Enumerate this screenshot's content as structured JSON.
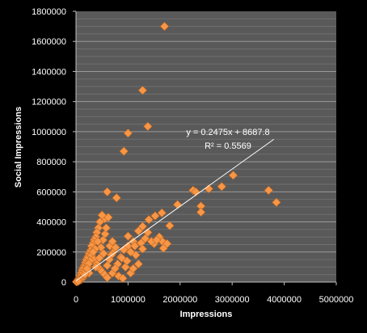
{
  "chart_data": {
    "type": "scatter",
    "title": "",
    "xlabel": "Impressions",
    "ylabel": "Social Impressions",
    "xlim": [
      0,
      5000000
    ],
    "ylim": [
      0,
      1800000
    ],
    "x_ticks": [
      0,
      1000000,
      2000000,
      3000000,
      4000000,
      5000000
    ],
    "y_ticks": [
      0,
      200000,
      400000,
      600000,
      800000,
      1000000,
      1200000,
      1400000,
      1600000,
      1800000
    ],
    "x_tick_labels": [
      "0",
      "1000000",
      "2000000",
      "3000000",
      "4000000",
      "5000000"
    ],
    "y_tick_labels": [
      "0",
      "200000",
      "400000",
      "600000",
      "800000",
      "1000000",
      "1200000",
      "1400000",
      "1600000",
      "1800000"
    ],
    "grid": true,
    "legend": "none",
    "colors": {
      "background": "#000000",
      "plot_area": "#595959",
      "grid": "#8a8a8a",
      "marker": "#F79646",
      "trendline": "#ffffff",
      "text": "#ffffff"
    },
    "trendline": {
      "equation": "y = 0.2475x + 8687.8",
      "r_squared": "R² = 0.5569",
      "slope": 0.2475,
      "intercept": 8687.8,
      "x_range": [
        0,
        3800000
      ]
    },
    "series": [
      {
        "marker": "diamond",
        "points": [
          [
            1700000,
            1700000
          ],
          [
            1280000,
            1275000
          ],
          [
            1380000,
            1035000
          ],
          [
            1000000,
            990000
          ],
          [
            920000,
            870000
          ],
          [
            600000,
            600000
          ],
          [
            780000,
            560000
          ],
          [
            2250000,
            610000
          ],
          [
            2300000,
            600000
          ],
          [
            2550000,
            620000
          ],
          [
            2800000,
            635000
          ],
          [
            3020000,
            710000
          ],
          [
            3700000,
            610000
          ],
          [
            3850000,
            530000
          ],
          [
            1950000,
            515000
          ],
          [
            2400000,
            505000
          ],
          [
            2400000,
            465000
          ],
          [
            1650000,
            460000
          ],
          [
            1520000,
            440000
          ],
          [
            1400000,
            415000
          ],
          [
            1280000,
            370000
          ],
          [
            1800000,
            375000
          ],
          [
            1200000,
            340000
          ],
          [
            1000000,
            305000
          ],
          [
            1330000,
            290000
          ],
          [
            1600000,
            300000
          ],
          [
            1660000,
            270000
          ],
          [
            1750000,
            255000
          ],
          [
            1500000,
            255000
          ],
          [
            1680000,
            225000
          ],
          [
            1250000,
            260000
          ],
          [
            1280000,
            220000
          ],
          [
            1100000,
            270000
          ],
          [
            1150000,
            180000
          ],
          [
            1000000,
            240000
          ],
          [
            920000,
            215000
          ],
          [
            860000,
            165000
          ],
          [
            800000,
            120000
          ],
          [
            720000,
            200000
          ],
          [
            680000,
            180000
          ],
          [
            640000,
            150000
          ],
          [
            600000,
            110000
          ],
          [
            550000,
            420000
          ],
          [
            620000,
            430000
          ],
          [
            500000,
            445000
          ],
          [
            460000,
            400000
          ],
          [
            430000,
            360000
          ],
          [
            400000,
            330000
          ],
          [
            380000,
            300000
          ],
          [
            350000,
            280000
          ],
          [
            330000,
            260000
          ],
          [
            300000,
            240000
          ],
          [
            280000,
            210000
          ],
          [
            250000,
            190000
          ],
          [
            230000,
            170000
          ],
          [
            200000,
            150000
          ],
          [
            180000,
            130000
          ],
          [
            160000,
            110000
          ],
          [
            140000,
            95000
          ],
          [
            120000,
            80000
          ],
          [
            100000,
            60000
          ],
          [
            90000,
            45000
          ],
          [
            70000,
            30000
          ],
          [
            50000,
            20000
          ],
          [
            30000,
            10000
          ],
          [
            20000,
            5000
          ],
          [
            10000,
            2000
          ],
          [
            300000,
            180000
          ],
          [
            350000,
            150000
          ],
          [
            400000,
            120000
          ],
          [
            450000,
            90000
          ],
          [
            500000,
            70000
          ],
          [
            550000,
            50000
          ],
          [
            600000,
            30000
          ],
          [
            700000,
            60000
          ],
          [
            750000,
            90000
          ],
          [
            820000,
            40000
          ],
          [
            900000,
            25000
          ],
          [
            950000,
            100000
          ],
          [
            1050000,
            60000
          ],
          [
            1100000,
            90000
          ],
          [
            1200000,
            120000
          ],
          [
            250000,
            60000
          ],
          [
            220000,
            100000
          ],
          [
            180000,
            70000
          ],
          [
            150000,
            40000
          ],
          [
            130000,
            30000
          ],
          [
            110000,
            20000
          ],
          [
            90000,
            15000
          ],
          [
            60000,
            10000
          ],
          [
            40000,
            5000
          ],
          [
            480000,
            230000
          ],
          [
            520000,
            280000
          ],
          [
            560000,
            320000
          ],
          [
            580000,
            360000
          ],
          [
            420000,
            270000
          ],
          [
            370000,
            220000
          ],
          [
            330000,
            200000
          ],
          [
            270000,
            140000
          ],
          [
            240000,
            120000
          ],
          [
            210000,
            90000
          ],
          [
            170000,
            50000
          ],
          [
            380000,
            100000
          ],
          [
            450000,
            160000
          ],
          [
            530000,
            190000
          ],
          [
            650000,
            240000
          ],
          [
            700000,
            270000
          ],
          [
            760000,
            230000
          ],
          [
            880000,
            160000
          ],
          [
            980000,
            140000
          ],
          [
            1050000,
            200000
          ],
          [
            1130000,
            240000
          ],
          [
            1380000,
            330000
          ],
          [
            1450000,
            270000
          ],
          [
            1550000,
            280000
          ]
        ]
      }
    ]
  }
}
